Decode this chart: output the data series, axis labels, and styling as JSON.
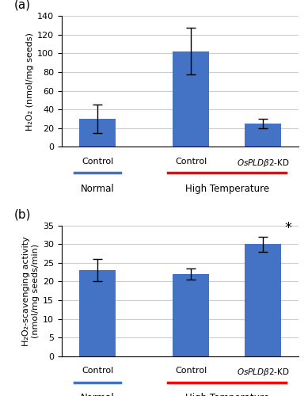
{
  "panel_a": {
    "categories": [
      "Control",
      "Control",
      "OsPLDβ2-KD"
    ],
    "values": [
      30,
      102,
      25
    ],
    "errors": [
      15,
      25,
      5
    ],
    "bar_color": "#4472C4",
    "ylabel": "H₂O₂ (nmol/mg seeds)",
    "ylim": [
      0,
      140
    ],
    "yticks": [
      0,
      20,
      40,
      60,
      80,
      100,
      120,
      140
    ],
    "group_labels": [
      "Normal",
      "High Temperature"
    ],
    "group_colors": [
      "#4472C4",
      "#FF0000"
    ],
    "panel_label": "(a)"
  },
  "panel_b": {
    "categories": [
      "Control",
      "Control",
      "OsPLDβ2-KD"
    ],
    "values": [
      23,
      22,
      30
    ],
    "errors": [
      3,
      1.5,
      2
    ],
    "bar_color": "#4472C4",
    "ylabel": "H₂O₂-scavenging activity\n(nmol/mg seeds/min)",
    "ylim": [
      0,
      35
    ],
    "yticks": [
      0,
      5,
      10,
      15,
      20,
      25,
      30,
      35
    ],
    "group_labels": [
      "Normal",
      "High Temperature"
    ],
    "group_colors": [
      "#4472C4",
      "#FF0000"
    ],
    "panel_label": "(b)",
    "significance": [
      false,
      false,
      true
    ],
    "sig_symbol": "*"
  },
  "background_color": "#FFFFFF",
  "grid_color": "#CCCCCC",
  "bar_width": 0.5,
  "x_positions": [
    0,
    1.3,
    2.3
  ]
}
